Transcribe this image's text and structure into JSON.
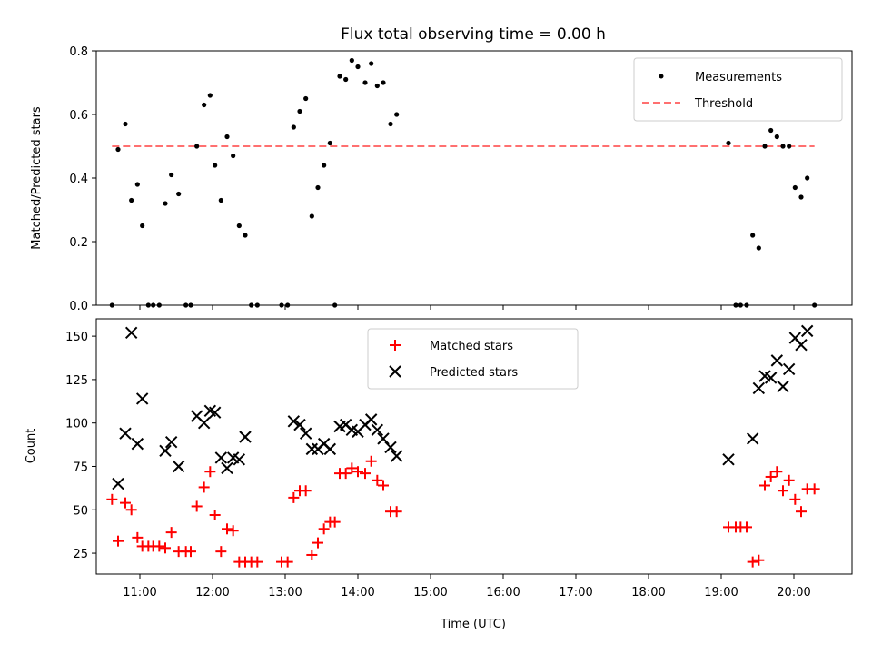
{
  "chart_data": [
    {
      "type": "scatter",
      "title": "Flux total observing time = 0.00 h",
      "xlabel": "",
      "ylabel": "Matched/Predicted stars",
      "ylim": [
        0,
        0.8
      ],
      "yticks": [
        "0.0",
        "0.2",
        "0.4",
        "0.6",
        "0.8"
      ],
      "xlim": [
        "10:24",
        "20:48"
      ],
      "xtick_positions": [
        "11:00",
        "12:00",
        "13:00",
        "14:00",
        "15:00",
        "16:00",
        "17:00",
        "18:00",
        "19:00",
        "20:00"
      ],
      "legend_position": "top-right",
      "series": [
        {
          "name": "Measurements",
          "style": "dot",
          "color": "#000000",
          "points": [
            [
              "10:37",
              0.0
            ],
            [
              "10:42",
              0.49
            ],
            [
              "10:48",
              0.57
            ],
            [
              "10:53",
              0.33
            ],
            [
              "10:58",
              0.38
            ],
            [
              "11:02",
              0.25
            ],
            [
              "11:07",
              0.0
            ],
            [
              "11:11",
              0.0
            ],
            [
              "11:16",
              0.0
            ],
            [
              "11:21",
              0.32
            ],
            [
              "11:26",
              0.41
            ],
            [
              "11:32",
              0.35
            ],
            [
              "11:38",
              0.0
            ],
            [
              "11:42",
              0.0
            ],
            [
              "11:47",
              0.5
            ],
            [
              "11:53",
              0.63
            ],
            [
              "11:58",
              0.66
            ],
            [
              "12:02",
              0.44
            ],
            [
              "12:07",
              0.33
            ],
            [
              "12:12",
              0.53
            ],
            [
              "12:17",
              0.47
            ],
            [
              "12:22",
              0.25
            ],
            [
              "12:27",
              0.22
            ],
            [
              "12:32",
              0.0
            ],
            [
              "12:37",
              0.0
            ],
            [
              "12:57",
              0.0
            ],
            [
              "13:02",
              0.0
            ],
            [
              "13:07",
              0.56
            ],
            [
              "13:12",
              0.61
            ],
            [
              "13:17",
              0.65
            ],
            [
              "13:22",
              0.28
            ],
            [
              "13:27",
              0.37
            ],
            [
              "13:32",
              0.44
            ],
            [
              "13:37",
              0.51
            ],
            [
              "13:41",
              0.0
            ],
            [
              "13:45",
              0.72
            ],
            [
              "13:50",
              0.71
            ],
            [
              "13:55",
              0.77
            ],
            [
              "14:00",
              0.75
            ],
            [
              "14:06",
              0.7
            ],
            [
              "14:11",
              0.76
            ],
            [
              "14:16",
              0.69
            ],
            [
              "14:21",
              0.7
            ],
            [
              "14:27",
              0.57
            ],
            [
              "14:32",
              0.6
            ],
            [
              "19:06",
              0.51
            ],
            [
              "19:12",
              0.0
            ],
            [
              "19:16",
              0.0
            ],
            [
              "19:21",
              0.0
            ],
            [
              "19:26",
              0.22
            ],
            [
              "19:31",
              0.18
            ],
            [
              "19:36",
              0.5
            ],
            [
              "19:41",
              0.55
            ],
            [
              "19:46",
              0.53
            ],
            [
              "19:51",
              0.5
            ],
            [
              "19:56",
              0.5
            ],
            [
              "20:01",
              0.37
            ],
            [
              "20:06",
              0.34
            ],
            [
              "20:11",
              0.4
            ],
            [
              "20:17",
              0.0
            ]
          ]
        },
        {
          "name": "Threshold",
          "style": "dashed-line",
          "color": "#ff7070",
          "points": [
            [
              "10:37",
              0.5
            ],
            [
              "20:17",
              0.5
            ]
          ]
        }
      ]
    },
    {
      "type": "scatter",
      "title": "",
      "xlabel": "Time (UTC)",
      "ylabel": "Count",
      "ylim": [
        13,
        160
      ],
      "yticks": [
        "25",
        "50",
        "75",
        "100",
        "125",
        "150"
      ],
      "xlim": [
        "10:24",
        "20:48"
      ],
      "xticks": [
        "11:00",
        "12:00",
        "13:00",
        "14:00",
        "15:00",
        "16:00",
        "17:00",
        "18:00",
        "19:00",
        "20:00"
      ],
      "legend_position": "upper center",
      "series": [
        {
          "name": "Matched stars",
          "marker": "plus",
          "color": "#ff0000",
          "points": [
            [
              "10:37",
              56
            ],
            [
              "10:42",
              32
            ],
            [
              "10:48",
              54
            ],
            [
              "10:53",
              50
            ],
            [
              "10:58",
              34
            ],
            [
              "11:02",
              29
            ],
            [
              "11:07",
              29
            ],
            [
              "11:11",
              29
            ],
            [
              "11:16",
              29
            ],
            [
              "11:21",
              28
            ],
            [
              "11:26",
              37
            ],
            [
              "11:32",
              26
            ],
            [
              "11:38",
              26
            ],
            [
              "11:42",
              26
            ],
            [
              "11:47",
              52
            ],
            [
              "11:53",
              63
            ],
            [
              "11:58",
              72
            ],
            [
              "12:02",
              47
            ],
            [
              "12:07",
              26
            ],
            [
              "12:12",
              39
            ],
            [
              "12:17",
              38
            ],
            [
              "12:22",
              20
            ],
            [
              "12:27",
              20
            ],
            [
              "12:32",
              20
            ],
            [
              "12:37",
              20
            ],
            [
              "12:57",
              20
            ],
            [
              "13:02",
              20
            ],
            [
              "13:07",
              57
            ],
            [
              "13:12",
              61
            ],
            [
              "13:17",
              61
            ],
            [
              "13:22",
              24
            ],
            [
              "13:27",
              31
            ],
            [
              "13:32",
              39
            ],
            [
              "13:37",
              43
            ],
            [
              "13:41",
              43
            ],
            [
              "13:45",
              71
            ],
            [
              "13:50",
              71
            ],
            [
              "13:55",
              74
            ],
            [
              "14:00",
              72
            ],
            [
              "14:06",
              71
            ],
            [
              "14:11",
              78
            ],
            [
              "14:16",
              67
            ],
            [
              "14:21",
              64
            ],
            [
              "14:27",
              49
            ],
            [
              "14:32",
              49
            ],
            [
              "19:06",
              40
            ],
            [
              "19:12",
              40
            ],
            [
              "19:16",
              40
            ],
            [
              "19:21",
              40
            ],
            [
              "19:26",
              20
            ],
            [
              "19:31",
              21
            ],
            [
              "19:36",
              64
            ],
            [
              "19:41",
              69
            ],
            [
              "19:46",
              72
            ],
            [
              "19:51",
              61
            ],
            [
              "19:56",
              67
            ],
            [
              "20:01",
              56
            ],
            [
              "20:06",
              49
            ],
            [
              "20:11",
              62
            ],
            [
              "20:17",
              62
            ]
          ]
        },
        {
          "name": "Predicted stars",
          "marker": "x",
          "color": "#000000",
          "points": [
            [
              "10:42",
              65
            ],
            [
              "10:48",
              94
            ],
            [
              "10:53",
              152
            ],
            [
              "10:58",
              88
            ],
            [
              "11:02",
              114
            ],
            [
              "11:21",
              84
            ],
            [
              "11:26",
              89
            ],
            [
              "11:32",
              75
            ],
            [
              "11:47",
              104
            ],
            [
              "11:53",
              100
            ],
            [
              "11:58",
              107
            ],
            [
              "12:02",
              106
            ],
            [
              "12:07",
              80
            ],
            [
              "12:12",
              74
            ],
            [
              "12:17",
              80
            ],
            [
              "12:22",
              79
            ],
            [
              "12:27",
              92
            ],
            [
              "13:07",
              101
            ],
            [
              "13:12",
              99
            ],
            [
              "13:17",
              94
            ],
            [
              "13:22",
              85
            ],
            [
              "13:27",
              85
            ],
            [
              "13:32",
              88
            ],
            [
              "13:37",
              85
            ],
            [
              "13:45",
              98
            ],
            [
              "13:50",
              99
            ],
            [
              "13:55",
              96
            ],
            [
              "14:00",
              95
            ],
            [
              "14:06",
              99
            ],
            [
              "14:11",
              102
            ],
            [
              "14:16",
              96
            ],
            [
              "14:21",
              91
            ],
            [
              "14:27",
              86
            ],
            [
              "14:32",
              81
            ],
            [
              "19:06",
              79
            ],
            [
              "19:26",
              91
            ],
            [
              "19:31",
              120
            ],
            [
              "19:36",
              127
            ],
            [
              "19:41",
              126
            ],
            [
              "19:46",
              136
            ],
            [
              "19:51",
              121
            ],
            [
              "19:56",
              131
            ],
            [
              "20:01",
              149
            ],
            [
              "20:06",
              145
            ],
            [
              "20:11",
              153
            ]
          ]
        }
      ]
    }
  ]
}
